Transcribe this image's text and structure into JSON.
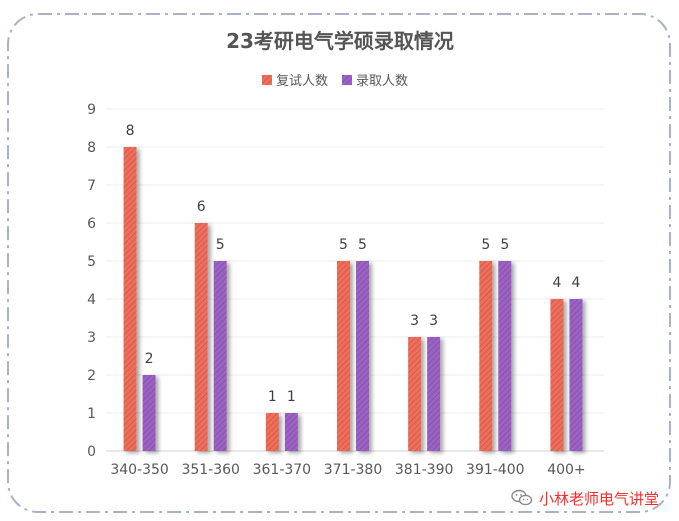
{
  "chart_data": {
    "type": "bar",
    "title": "23考研电气学硕录取情况",
    "categories": [
      "340-350",
      "351-360",
      "361-370",
      "371-380",
      "381-390",
      "391-400",
      "400+"
    ],
    "series": [
      {
        "name": "复试人数",
        "values": [
          8,
          6,
          1,
          5,
          3,
          5,
          4
        ],
        "labels": [
          "8",
          "6",
          "1",
          "5",
          "3",
          "5",
          "4"
        ],
        "color": "#ee6e5c"
      },
      {
        "name": "录取人数",
        "values": [
          2,
          5,
          1,
          5,
          3,
          5,
          4
        ],
        "labels": [
          "2",
          "5",
          "1",
          "5",
          "3",
          "5",
          "4"
        ],
        "color": "#9b62c3"
      }
    ],
    "y_ticks": [
      "0",
      "1",
      "2",
      "3",
      "4",
      "5",
      "6",
      "7",
      "8",
      "9"
    ],
    "ylim": [
      0,
      9
    ],
    "grid": true,
    "legend_position": "top-center",
    "xlabel": "",
    "ylabel": ""
  },
  "watermark": {
    "text": "小林老师电气讲堂",
    "icon": "wechat-icon"
  }
}
